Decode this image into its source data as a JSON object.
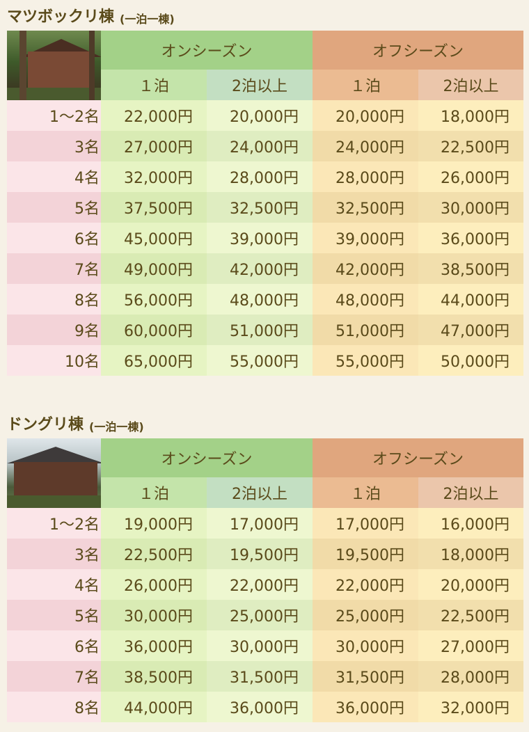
{
  "sections": [
    {
      "title": "マツボックリ棟",
      "subtitle": "(一泊一棟)",
      "season_on": "オンシーズン",
      "season_off": "オフシーズン",
      "col_one_night": "１泊",
      "col_two_plus": "2泊以上",
      "rows": [
        {
          "label": "1〜2名",
          "on1": "22,000円",
          "on2": "20,000円",
          "off1": "20,000円",
          "off2": "18,000円"
        },
        {
          "label": "3名",
          "on1": "27,000円",
          "on2": "24,000円",
          "off1": "24,000円",
          "off2": "22,500円"
        },
        {
          "label": "4名",
          "on1": "32,000円",
          "on2": "28,000円",
          "off1": "28,000円",
          "off2": "26,000円"
        },
        {
          "label": "5名",
          "on1": "37,500円",
          "on2": "32,500円",
          "off1": "32,500円",
          "off2": "30,000円"
        },
        {
          "label": "6名",
          "on1": "45,000円",
          "on2": "39,000円",
          "off1": "39,000円",
          "off2": "36,000円"
        },
        {
          "label": "7名",
          "on1": "49,000円",
          "on2": "42,000円",
          "off1": "42,000円",
          "off2": "38,500円"
        },
        {
          "label": "8名",
          "on1": "56,000円",
          "on2": "48,000円",
          "off1": "48,000円",
          "off2": "44,000円"
        },
        {
          "label": "9名",
          "on1": "60,000円",
          "on2": "51,000円",
          "off1": "51,000円",
          "off2": "47,000円"
        },
        {
          "label": "10名",
          "on1": "65,000円",
          "on2": "55,000円",
          "off1": "55,000円",
          "off2": "50,000円"
        }
      ]
    },
    {
      "title": "ドングリ棟",
      "subtitle": "(一泊一棟)",
      "season_on": "オンシーズン",
      "season_off": "オフシーズン",
      "col_one_night": "１泊",
      "col_two_plus": "2泊以上",
      "rows": [
        {
          "label": "1〜2名",
          "on1": "19,000円",
          "on2": "17,000円",
          "off1": "17,000円",
          "off2": "16,000円"
        },
        {
          "label": "3名",
          "on1": "22,500円",
          "on2": "19,500円",
          "off1": "19,500円",
          "off2": "18,000円"
        },
        {
          "label": "4名",
          "on1": "26,000円",
          "on2": "22,000円",
          "off1": "22,000円",
          "off2": "20,000円"
        },
        {
          "label": "5名",
          "on1": "30,000円",
          "on2": "25,000円",
          "off1": "25,000円",
          "off2": "22,500円"
        },
        {
          "label": "6名",
          "on1": "36,000円",
          "on2": "30,000円",
          "off1": "30,000円",
          "off2": "27,000円"
        },
        {
          "label": "7名",
          "on1": "38,500円",
          "on2": "31,500円",
          "off1": "31,500円",
          "off2": "28,000円"
        },
        {
          "label": "8名",
          "on1": "44,000円",
          "on2": "36,000円",
          "off1": "36,000円",
          "off2": "32,000円"
        }
      ]
    }
  ]
}
